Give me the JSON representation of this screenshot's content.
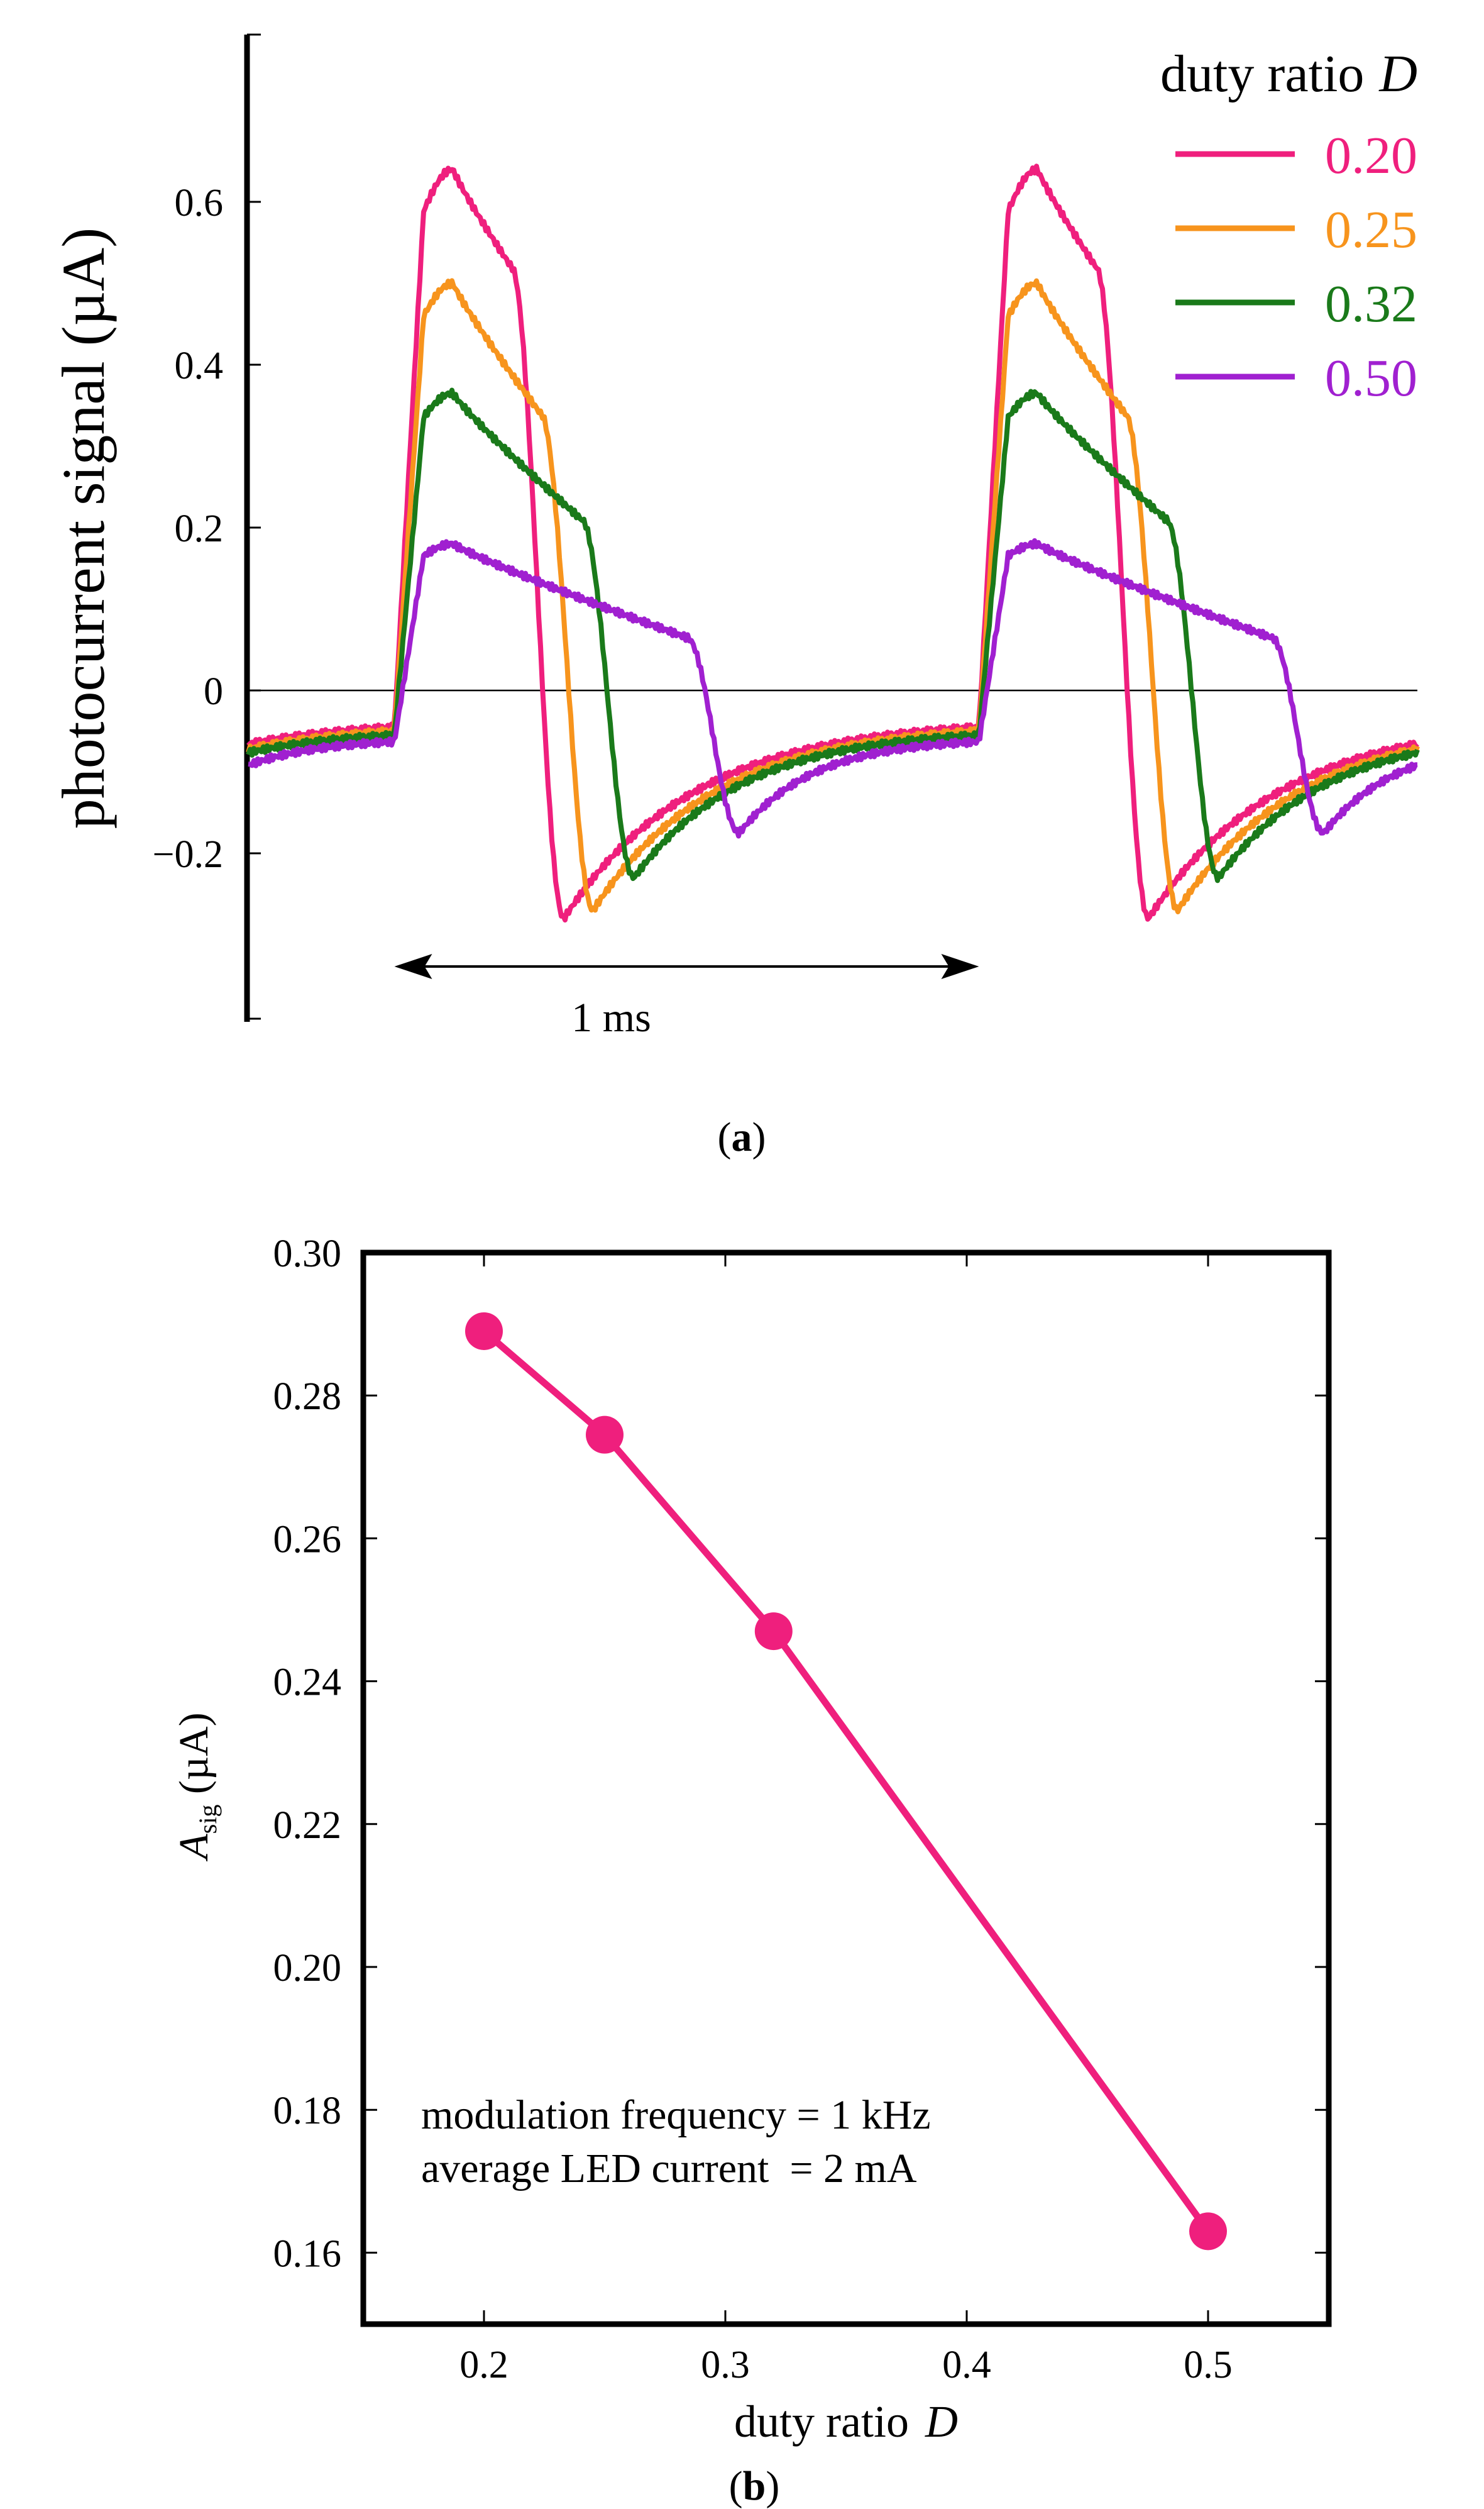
{
  "chart_data": [
    {
      "type": "line",
      "panel": "a",
      "caption_letter": "a",
      "ylabel": "photocurrent signal (µA)",
      "yticks": [
        "0.6",
        "0.4",
        "0.2",
        "0",
        "−0.2"
      ],
      "ytick_values": [
        0.6,
        0.4,
        0.2,
        0,
        -0.2
      ],
      "ylim": [
        -0.4,
        0.8
      ],
      "xlim_ms": [
        0,
        2
      ],
      "period_annotation": "1 ms",
      "period_ms": [
        0.25,
        1.25
      ],
      "legend_title": "duty ratio",
      "legend_title_symbol": "D",
      "legend_position": "top-right",
      "series": [
        {
          "name": "0.20",
          "color": "#ef1f7d",
          "duty": 0.2,
          "peak": 0.64,
          "trough": -0.28,
          "pre": -0.045,
          "knee": 0.52,
          "tail_start": -0.085,
          "tail_end": -0.095
        },
        {
          "name": "0.25",
          "color": "#f7941d",
          "duty": 0.25,
          "peak": 0.5,
          "trough": -0.27,
          "pre": -0.05,
          "knee": 0.34,
          "tail_start": -0.09,
          "tail_end": -0.1
        },
        {
          "name": "0.32",
          "color": "#1a7a1a",
          "duty": 0.32,
          "peak": 0.365,
          "trough": -0.23,
          "pre": -0.055,
          "knee": 0.21,
          "tail_start": -0.1,
          "tail_end": -0.11
        },
        {
          "name": "0.50",
          "color": "#a020d0",
          "duty": 0.5,
          "peak": 0.18,
          "trough": -0.175,
          "pre": -0.063,
          "knee": 0.065,
          "tail_start": -0.12,
          "tail_end": -0.13
        }
      ]
    },
    {
      "type": "line",
      "panel": "b",
      "caption_letter": "b",
      "xlabel": "duty ratio",
      "xlabel_symbol": "D",
      "ylabel_symbol": "A",
      "ylabel_subscript": "sig",
      "ylabel_unit": " (µA)",
      "x": [
        0.2,
        0.25,
        0.32,
        0.5
      ],
      "y": [
        0.289,
        0.2745,
        0.247,
        0.163
      ],
      "xlim": [
        0.15,
        0.55
      ],
      "ylim": [
        0.15,
        0.3
      ],
      "xticks": [
        "0.2",
        "0.3",
        "0.4",
        "0.5"
      ],
      "xtick_values": [
        0.2,
        0.3,
        0.4,
        0.5
      ],
      "yticks": [
        "0.30",
        "0.28",
        "0.26",
        "0.24",
        "0.22",
        "0.20",
        "0.18",
        "0.16"
      ],
      "ytick_values": [
        0.3,
        0.28,
        0.26,
        0.24,
        0.22,
        0.2,
        0.18,
        0.16
      ],
      "color": "#ef1f7d",
      "annotations": [
        "modulation frequency = 1 kHz",
        "average LED current  = 2 mA"
      ]
    }
  ]
}
